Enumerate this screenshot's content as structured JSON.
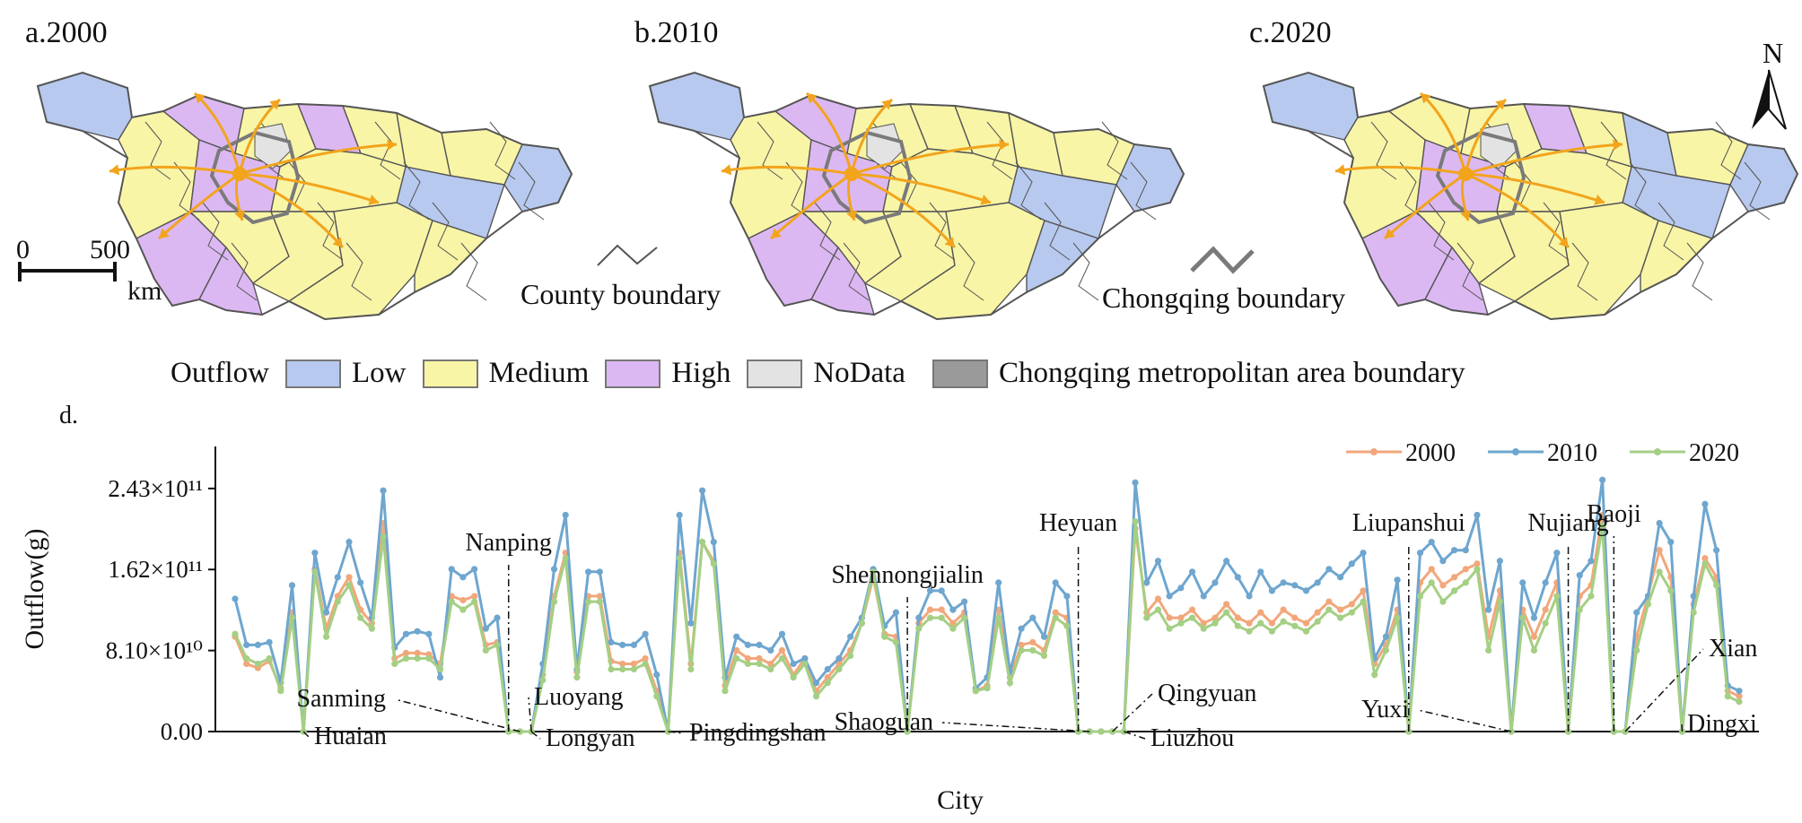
{
  "panels": {
    "a_title": "a.2000",
    "b_title": "b.2010",
    "c_title": "c.2020"
  },
  "north": "N",
  "scale": {
    "zero": "0",
    "five_hundred": "500",
    "unit": "km"
  },
  "boundaries": {
    "county": "County boundary",
    "chongqing": "Chongqing boundary"
  },
  "legend": {
    "title": "Outflow",
    "items": [
      {
        "label": "Low",
        "color": "#b7c9ee"
      },
      {
        "label": "Medium",
        "color": "#f8f5a6"
      },
      {
        "label": "High",
        "color": "#dcb8f2"
      },
      {
        "label": "NoData",
        "color": "#e3e3e3"
      },
      {
        "label": "Chongqing metropolitan area boundary",
        "color": "#9a9a9a"
      }
    ]
  },
  "colors": {
    "low": "#b7c9ee",
    "medium": "#f8f5a6",
    "high": "#dcb8f2",
    "nodata": "#e3e3e3",
    "arrow": "#f2a41c",
    "county_line": "#555555",
    "cq_line": "#7a7a7a",
    "s2000": "#f2a77b",
    "s2010": "#6ea6cf",
    "s2020": "#a4cf84"
  },
  "chart_data": {
    "type": "line",
    "panel_label": "d.",
    "xlabel": "City",
    "ylabel": "Outflow(g)",
    "yticks": [
      "0.00",
      "8.10×10¹⁰",
      "1.62×10¹¹",
      "2.43×10¹¹"
    ],
    "ytick_values": [
      0,
      81000000000,
      162000000000,
      243000000000
    ],
    "ylim": [
      0,
      285000000000
    ],
    "legend_position": "top-right",
    "series": [
      {
        "name": "2000",
        "color": "#f2a77b",
        "values": [
          94.8,
          67.7,
          63.6,
          70.4,
          43.3,
          119.1,
          0,
          162.4,
          102.9,
          135.4,
          154.3,
          121.8,
          108.3,
          208.3,
          73.1,
          78.5,
          78.5,
          77.1,
          67.7,
          135.4,
          131.3,
          135.4,
          86.6,
          89.3,
          0,
          0,
          0,
          56.8,
          135.4,
          178.6,
          59.6,
          135.4,
          135.4,
          70.4,
          67.7,
          67.7,
          73.1,
          40.6,
          0,
          178.6,
          67.7,
          189.5,
          170.5,
          45.9,
          81.2,
          73.1,
          73.1,
          67.7,
          81.2,
          56.8,
          73.1,
          40.6,
          54.1,
          67.7,
          81.2,
          108.3,
          154.3,
          97.5,
          94.8,
          0,
          108.3,
          121.8,
          121.8,
          108.3,
          119.1,
          40.6,
          45.9,
          121.8,
          54.1,
          86.6,
          89.3,
          81.2,
          119.1,
          113.7,
          0,
          0,
          0,
          0,
          0,
          202.9,
          119.1,
          132.7,
          113.7,
          113.7,
          121.8,
          108.3,
          113.7,
          127.3,
          113.7,
          108.3,
          119.1,
          108.3,
          121.8,
          113.7,
          108.3,
          119.1,
          129.9,
          121.8,
          127.3,
          140.8,
          67.7,
          86.6,
          121.8,
          0,
          148.9,
          162.4,
          146.2,
          154.3,
          162.4,
          167.8,
          94.8,
          140.8,
          0,
          121.8,
          94.8,
          121.8,
          148.9,
          0,
          135.4,
          146.2,
          216.5,
          0,
          0,
          94.8,
          135.4,
          181.3,
          154.3,
          0,
          127.3,
          173.2,
          154.3,
          40.6,
          35.2
        ]
      },
      {
        "name": "2010",
        "color": "#6ea6cf",
        "values": [
          132.7,
          86.6,
          86.6,
          89.3,
          48.7,
          146.2,
          0,
          178.6,
          119.1,
          154.3,
          189.5,
          148.9,
          113.7,
          240.9,
          83.9,
          97.5,
          100.2,
          97.5,
          54.1,
          162.4,
          154.3,
          162.4,
          102.9,
          113.7,
          0,
          0,
          0,
          67.7,
          162.4,
          216.5,
          62.3,
          159.7,
          159.7,
          89.3,
          86.6,
          86.6,
          97.5,
          56.8,
          0,
          216.5,
          108.3,
          240.9,
          189.5,
          54.1,
          94.8,
          86.6,
          86.6,
          81.2,
          97.5,
          67.7,
          73.1,
          48.7,
          62.3,
          73.1,
          94.8,
          113.7,
          162.4,
          105.6,
          119.1,
          0,
          113.7,
          140.8,
          140.8,
          121.8,
          129.9,
          43.3,
          54.1,
          148.9,
          59.6,
          102.9,
          113.7,
          94.8,
          148.9,
          135.4,
          0,
          0,
          0,
          0,
          0,
          248.9,
          148.9,
          170.5,
          135.4,
          143.5,
          159.7,
          135.4,
          148.9,
          170.5,
          154.3,
          135.4,
          159.7,
          140.8,
          148.9,
          146.2,
          140.8,
          148.9,
          162.4,
          154.3,
          167.8,
          178.6,
          73.1,
          94.8,
          151.6,
          0,
          178.6,
          189.5,
          170.5,
          181.3,
          181.3,
          216.5,
          121.8,
          170.5,
          0,
          148.9,
          113.7,
          148.9,
          178.6,
          0,
          156.2,
          170.5,
          251.6,
          0,
          0,
          119.1,
          135.4,
          208.3,
          189.5,
          0,
          135.4,
          227.4,
          181.3,
          45.9,
          40.6
        ]
      },
      {
        "name": "2020",
        "color": "#a4cf84",
        "values": [
          97.5,
          73.1,
          67.7,
          73.1,
          40.6,
          113.7,
          0,
          159.7,
          94.8,
          129.9,
          146.2,
          113.7,
          102.9,
          194.9,
          67.7,
          73.1,
          73.1,
          73.1,
          62.3,
          129.9,
          121.8,
          129.9,
          81.2,
          86.6,
          0,
          0,
          0,
          51.4,
          129.9,
          173.2,
          54.1,
          129.9,
          129.9,
          62.3,
          62.3,
          62.3,
          67.7,
          35.2,
          0,
          173.2,
          62.3,
          189.5,
          167.8,
          40.6,
          73.1,
          67.7,
          67.7,
          62.3,
          73.1,
          54.1,
          67.7,
          35.2,
          48.7,
          62.3,
          75.8,
          108.3,
          159.7,
          94.8,
          89.3,
          0,
          102.9,
          113.7,
          113.7,
          102.9,
          113.7,
          40.6,
          43.3,
          113.7,
          48.7,
          81.2,
          81.2,
          75.8,
          113.7,
          105.6,
          0,
          0,
          0,
          0,
          0,
          210.0,
          113.7,
          121.8,
          102.9,
          108.3,
          113.7,
          102.9,
          108.3,
          119.1,
          105.6,
          100.2,
          108.3,
          100.2,
          110.0,
          105.6,
          100.2,
          110.0,
          121.8,
          113.7,
          119.1,
          129.9,
          56.8,
          81.2,
          113.7,
          0,
          135.4,
          148.9,
          129.9,
          140.8,
          148.9,
          162.4,
          81.2,
          129.9,
          0,
          113.7,
          81.2,
          108.3,
          135.4,
          0,
          121.8,
          135.4,
          205.6,
          0,
          0,
          81.2,
          127.3,
          159.7,
          140.8,
          0,
          119.1,
          167.8,
          146.2,
          35.2,
          29.8
        ]
      }
    ],
    "value_unit_scale": 1000000000,
    "annotations": [
      {
        "label": "Huaian",
        "index": 6
      },
      {
        "label": "Nanping",
        "index": 24
      },
      {
        "label": "Sanming",
        "index": 25
      },
      {
        "label": "Luoyang",
        "index": 26
      },
      {
        "label": "Longyan",
        "index": 26
      },
      {
        "label": "Pingdingshan",
        "index": 38
      },
      {
        "label": "Shennongjialin",
        "index": 59
      },
      {
        "label": "Heyuan",
        "index": 74
      },
      {
        "label": "Shaoguan",
        "index": 75
      },
      {
        "label": "Qingyuan",
        "index": 77
      },
      {
        "label": "Liuzhou",
        "index": 78
      },
      {
        "label": "Liupanshui",
        "index": 103
      },
      {
        "label": "Yuxi",
        "index": 112
      },
      {
        "label": "Nujiang",
        "index": 117
      },
      {
        "label": "Baoji",
        "index": 121
      },
      {
        "label": "Xian",
        "index": 122
      },
      {
        "label": "Dingxi",
        "index": 127
      }
    ]
  }
}
